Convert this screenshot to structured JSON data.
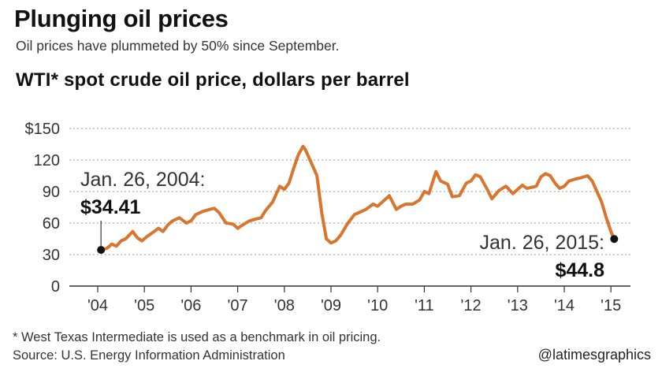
{
  "header": {
    "title": "Plunging oil prices",
    "subtitle": "Oil prices have plummeted by 50% since September."
  },
  "footer": {
    "footnote": "* West Texas Intermediate is used as a benchmark in oil pricing.",
    "source": "Source: U.S. Energy Information Administration",
    "credit": "@latimesgraphics"
  },
  "colors": {
    "line": "#d8752e",
    "grid": "#9a9a9a",
    "axis": "#333333",
    "marker": "#111111"
  },
  "chart_data": {
    "type": "line",
    "title": "WTI* spot crude oil price, dollars per barrel",
    "xlabel": "",
    "ylabel": "",
    "ylim": [
      0,
      150
    ],
    "xlim": [
      2004.0,
      2015.2
    ],
    "grid": true,
    "y_ticks": [
      0,
      30,
      60,
      90,
      120,
      150
    ],
    "y_tick_labels": [
      "0",
      "30",
      "60",
      "90",
      "120",
      "$150"
    ],
    "x_ticks": [
      2004,
      2005,
      2006,
      2007,
      2008,
      2009,
      2010,
      2011,
      2012,
      2013,
      2014,
      2015
    ],
    "x_tick_labels": [
      "'04",
      "'05",
      "'06",
      "'07",
      "'08",
      "'09",
      "'10",
      "'11",
      "'12",
      "'13",
      "'14",
      "'15"
    ],
    "series": [
      {
        "x": [
          2004.07,
          2004.2,
          2004.3,
          2004.4,
          2004.5,
          2004.6,
          2004.75,
          2004.85,
          2004.95,
          2005.05,
          2005.15,
          2005.3,
          2005.4,
          2005.5,
          2005.6,
          2005.75,
          2005.9,
          2006.0,
          2006.1,
          2006.25,
          2006.4,
          2006.5,
          2006.6,
          2006.75,
          2006.9,
          2007.0,
          2007.1,
          2007.25,
          2007.4,
          2007.5,
          2007.6,
          2007.75,
          2007.9,
          2008.0,
          2008.1,
          2008.2,
          2008.3,
          2008.4,
          2008.45,
          2008.55,
          2008.7,
          2008.8,
          2008.9,
          2009.0,
          2009.1,
          2009.2,
          2009.35,
          2009.5,
          2009.6,
          2009.75,
          2009.9,
          2010.0,
          2010.1,
          2010.25,
          2010.4,
          2010.5,
          2010.6,
          2010.75,
          2010.9,
          2011.0,
          2011.1,
          2011.25,
          2011.35,
          2011.5,
          2011.6,
          2011.75,
          2011.9,
          2012.0,
          2012.1,
          2012.2,
          2012.35,
          2012.45,
          2012.6,
          2012.75,
          2012.9,
          2013.0,
          2013.1,
          2013.2,
          2013.3,
          2013.4,
          2013.5,
          2013.6,
          2013.7,
          2013.8,
          2013.9,
          2014.0,
          2014.1,
          2014.25,
          2014.35,
          2014.5,
          2014.6,
          2014.7,
          2014.8,
          2014.9,
          2015.0,
          2015.07
        ],
        "values": [
          34.41,
          36,
          40,
          38,
          43,
          45,
          52,
          46,
          43,
          47,
          50,
          55,
          52,
          58,
          62,
          65,
          60,
          62,
          68,
          71,
          73,
          74,
          70,
          60,
          59,
          55,
          58,
          62,
          64,
          65,
          72,
          80,
          95,
          92,
          98,
          112,
          125,
          133,
          130,
          120,
          105,
          70,
          45,
          41,
          43,
          48,
          59,
          68,
          70,
          73,
          78,
          76,
          80,
          86,
          73,
          76,
          78,
          78,
          82,
          90,
          88,
          109,
          100,
          97,
          85,
          86,
          98,
          100,
          106,
          104,
          92,
          83,
          91,
          95,
          88,
          92,
          96,
          93,
          94,
          95,
          104,
          107,
          105,
          98,
          93,
          95,
          100,
          102,
          103,
          105,
          100,
          90,
          80,
          65,
          52,
          44.8
        ]
      }
    ],
    "annotations": [
      {
        "date": "Jan. 26, 2004:",
        "value": "$34.41",
        "x": 2004.07,
        "y": 34.41
      },
      {
        "date": "Jan. 26, 2015:",
        "value": "$44.8",
        "x": 2015.07,
        "y": 44.8
      }
    ]
  }
}
